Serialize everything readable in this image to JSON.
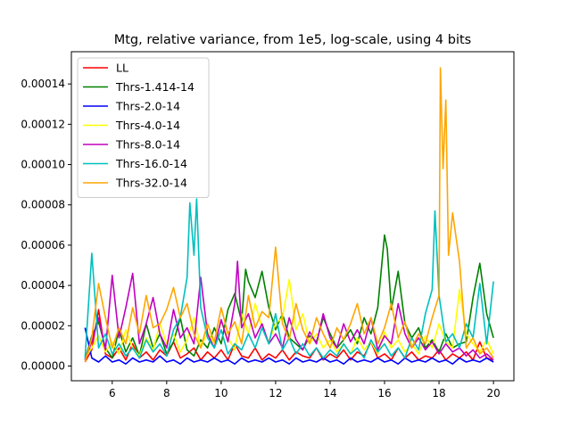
{
  "chart_data": {
    "type": "line",
    "title": "Mtg, relative variance, from 1e5, log-scale, using 4 bits",
    "xlabel": "",
    "ylabel": "",
    "xlim": [
      4.5,
      20.75
    ],
    "ylim": [
      -7.3e-06,
      0.000156
    ],
    "xticks": [
      6,
      8,
      10,
      12,
      14,
      16,
      18,
      20
    ],
    "xtick_labels": [
      "6",
      "8",
      "10",
      "12",
      "14",
      "16",
      "18",
      "20"
    ],
    "yticks": [
      0,
      2e-05,
      4e-05,
      6e-05,
      8e-05,
      0.0001,
      0.00012,
      0.00014
    ],
    "ytick_labels": [
      "0.00000",
      "0.00002",
      "0.00004",
      "0.00006",
      "0.00008",
      "0.00010",
      "0.00012",
      "0.00014"
    ],
    "grid": false,
    "legend_position": "upper left",
    "series": [
      {
        "name": "LL",
        "color": "#ff0000",
        "x": [
          5.0,
          5.25,
          5.5,
          5.75,
          6.0,
          6.25,
          6.5,
          6.75,
          7.0,
          7.25,
          7.5,
          7.75,
          8.0,
          8.25,
          8.5,
          8.75,
          9.0,
          9.25,
          9.5,
          9.75,
          10.0,
          10.25,
          10.5,
          10.75,
          11.0,
          11.25,
          11.5,
          11.75,
          12.0,
          12.25,
          12.5,
          12.75,
          13.0,
          13.25,
          13.5,
          13.75,
          14.0,
          14.25,
          14.5,
          14.75,
          15.0,
          15.25,
          15.5,
          15.75,
          16.0,
          16.25,
          16.5,
          16.75,
          17.0,
          17.25,
          17.5,
          17.75,
          18.0,
          18.25,
          18.5,
          18.75,
          19.0,
          19.25,
          19.5,
          19.75,
          20.0
        ],
        "y": [
          2e-06,
          8e-06,
          2.8e-05,
          6e-06,
          4e-06,
          9e-06,
          3e-06,
          1.1e-05,
          4e-06,
          7e-06,
          3e-06,
          8e-06,
          5e-06,
          1.2e-05,
          4e-06,
          6e-06,
          9e-06,
          3e-06,
          7e-06,
          4e-06,
          8e-06,
          3e-06,
          1.1e-05,
          5e-06,
          4e-06,
          9e-06,
          3e-06,
          6e-06,
          4e-06,
          8e-06,
          3e-06,
          7e-06,
          5e-06,
          4e-06,
          9e-06,
          3e-06,
          6e-06,
          4e-06,
          8e-06,
          3e-06,
          7e-06,
          5e-06,
          1.2e-05,
          4e-06,
          6e-06,
          3e-06,
          9e-06,
          4e-06,
          7e-06,
          3e-06,
          5e-06,
          4e-06,
          8e-06,
          3e-06,
          6e-06,
          4e-06,
          7e-06,
          3e-06,
          1.2e-05,
          4e-06,
          3e-06
        ]
      },
      {
        "name": "Thrs-1.414-14",
        "color": "#008000",
        "x": [
          5.0,
          5.25,
          5.5,
          5.75,
          6.0,
          6.25,
          6.5,
          6.75,
          7.0,
          7.25,
          7.5,
          7.75,
          8.0,
          8.25,
          8.5,
          8.75,
          9.0,
          9.25,
          9.5,
          9.75,
          10.0,
          10.25,
          10.5,
          10.75,
          10.9,
          11.0,
          11.25,
          11.5,
          11.75,
          12.0,
          12.25,
          12.5,
          12.75,
          13.0,
          13.25,
          13.5,
          13.75,
          14.0,
          14.25,
          14.5,
          14.75,
          15.0,
          15.25,
          15.5,
          15.75,
          16.0,
          16.1,
          16.25,
          16.5,
          16.75,
          17.0,
          17.25,
          17.5,
          17.75,
          18.0,
          18.25,
          18.5,
          18.75,
          19.0,
          19.25,
          19.5,
          19.75,
          20.0
        ],
        "y": [
          3e-06,
          1.5e-05,
          2.2e-05,
          9e-06,
          4e-06,
          1.8e-05,
          7e-06,
          1.4e-05,
          5e-06,
          2.1e-05,
          9e-06,
          1.6e-05,
          6e-06,
          1.2e-05,
          2.4e-05,
          8e-06,
          5e-06,
          1.3e-05,
          9e-06,
          1.9e-05,
          1.1e-05,
          2.8e-05,
          3.6e-05,
          2.2e-05,
          4.8e-05,
          4.2e-05,
          3.4e-05,
          4.7e-05,
          2.9e-05,
          1.8e-05,
          2.6e-05,
          1.4e-05,
          1.1e-05,
          8e-06,
          1.5e-05,
          1.2e-05,
          2.4e-05,
          1.6e-05,
          9e-06,
          1.3e-05,
          1.8e-05,
          1.1e-05,
          2.4e-05,
          1.6e-05,
          2.9e-05,
          6.5e-05,
          5.8e-05,
          2.8e-05,
          4.7e-05,
          2.1e-05,
          1.4e-05,
          1.9e-05,
          9e-06,
          1.3e-05,
          7e-06,
          1.6e-05,
          9e-06,
          1.1e-05,
          1.2e-05,
          3.4e-05,
          5.1e-05,
          2.6e-05,
          1.4e-05
        ]
      },
      {
        "name": "Thrs-2.0-14",
        "color": "#0000ff",
        "x": [
          5.0,
          5.25,
          5.5,
          5.75,
          6.0,
          6.25,
          6.5,
          6.75,
          7.0,
          7.25,
          7.5,
          7.75,
          8.0,
          8.25,
          8.5,
          8.75,
          9.0,
          9.25,
          9.5,
          9.75,
          10.0,
          10.25,
          10.5,
          10.75,
          11.0,
          11.25,
          11.5,
          11.75,
          12.0,
          12.25,
          12.5,
          12.75,
          13.0,
          13.25,
          13.5,
          13.75,
          14.0,
          14.25,
          14.5,
          14.75,
          15.0,
          15.25,
          15.5,
          15.75,
          16.0,
          16.25,
          16.5,
          16.75,
          17.0,
          17.25,
          17.5,
          17.75,
          18.0,
          18.25,
          18.5,
          18.75,
          19.0,
          19.25,
          19.5,
          19.75,
          20.0
        ],
        "y": [
          1.9e-05,
          4e-06,
          2e-06,
          5e-06,
          2e-06,
          3e-06,
          1e-06,
          4e-06,
          2e-06,
          3e-06,
          2e-06,
          5e-06,
          2e-06,
          3e-06,
          1e-06,
          4e-06,
          2e-06,
          3e-06,
          2e-06,
          4e-06,
          2e-06,
          3e-06,
          1e-06,
          4e-06,
          2e-06,
          3e-06,
          2e-06,
          4e-06,
          2e-06,
          3e-06,
          1e-06,
          4e-06,
          2e-06,
          3e-06,
          2e-06,
          4e-06,
          2e-06,
          3e-06,
          1e-06,
          4e-06,
          2e-06,
          3e-06,
          2e-06,
          4e-06,
          2e-06,
          3e-06,
          1e-06,
          4e-06,
          2e-06,
          3e-06,
          2e-06,
          4e-06,
          2e-06,
          3e-06,
          1e-06,
          4e-06,
          2e-06,
          3e-06,
          2e-06,
          4e-06,
          2e-06
        ]
      },
      {
        "name": "Thrs-4.0-14",
        "color": "#ffff00",
        "x": [
          5.0,
          5.25,
          5.5,
          5.75,
          6.0,
          6.25,
          6.5,
          6.75,
          7.0,
          7.25,
          7.5,
          7.75,
          8.0,
          8.25,
          8.5,
          8.75,
          9.0,
          9.25,
          9.5,
          9.75,
          10.0,
          10.25,
          10.5,
          10.75,
          11.0,
          11.25,
          11.5,
          11.75,
          12.0,
          12.25,
          12.5,
          12.75,
          13.0,
          13.25,
          13.5,
          13.75,
          14.0,
          14.25,
          14.5,
          14.75,
          15.0,
          15.25,
          15.5,
          15.75,
          16.0,
          16.25,
          16.5,
          16.75,
          17.0,
          17.25,
          17.5,
          17.75,
          18.0,
          18.25,
          18.5,
          18.75,
          19.0,
          19.25,
          19.5,
          19.75,
          20.0
        ],
        "y": [
          4e-06,
          9e-06,
          1.5e-05,
          7e-06,
          1.2e-05,
          6e-06,
          1.8e-05,
          9e-06,
          5e-06,
          1.4e-05,
          8e-06,
          2.1e-05,
          1.1e-05,
          1.6e-05,
          7e-06,
          1.3e-05,
          2.4e-05,
          9e-06,
          1.7e-05,
          1.1e-05,
          2.2e-05,
          1.4e-05,
          8e-06,
          2.6e-05,
          1.6e-05,
          3.1e-05,
          1.9e-05,
          1.2e-05,
          2.1e-05,
          2.4e-05,
          4.3e-05,
          1.8e-05,
          2.6e-05,
          1.1e-05,
          1.6e-05,
          9e-06,
          1.3e-05,
          7e-06,
          1.1e-05,
          6e-06,
          1.4e-05,
          8e-06,
          1.2e-05,
          6e-06,
          1.7e-05,
          9e-06,
          1.3e-05,
          7e-06,
          1.1e-05,
          6e-06,
          1.5e-05,
          9e-06,
          2.1e-05,
          1.2e-05,
          9e-06,
          3.8e-05,
          1.6e-05,
          1.1e-05,
          7e-06,
          1.3e-05,
          6e-06
        ]
      },
      {
        "name": "Thrs-8.0-14",
        "color": "#c000c0",
        "x": [
          5.0,
          5.25,
          5.5,
          5.75,
          6.0,
          6.25,
          6.5,
          6.75,
          7.0,
          7.25,
          7.5,
          7.75,
          8.0,
          8.25,
          8.5,
          8.75,
          9.0,
          9.25,
          9.5,
          9.75,
          10.0,
          10.25,
          10.5,
          10.6,
          10.75,
          11.0,
          11.25,
          11.5,
          11.75,
          12.0,
          12.25,
          12.5,
          12.75,
          13.0,
          13.25,
          13.5,
          13.75,
          14.0,
          14.25,
          14.5,
          14.75,
          15.0,
          15.25,
          15.5,
          15.75,
          16.0,
          16.25,
          16.5,
          16.75,
          17.0,
          17.25,
          17.5,
          17.75,
          18.0,
          18.25,
          18.5,
          18.75,
          19.0,
          19.25,
          19.5,
          19.75,
          20.0
        ],
        "y": [
          3e-06,
          1.2e-05,
          2.4e-05,
          8e-06,
          4.5e-05,
          1.4e-05,
          2.9e-05,
          4.6e-05,
          1.1e-05,
          2.1e-05,
          3.4e-05,
          1.6e-05,
          9e-06,
          2.8e-05,
          1.4e-05,
          1.9e-05,
          1.1e-05,
          4.4e-05,
          1.6e-05,
          9e-06,
          2.3e-05,
          1.2e-05,
          3.1e-05,
          5.2e-05,
          1.9e-05,
          2.6e-05,
          1.4e-05,
          2.1e-05,
          1.1e-05,
          1.6e-05,
          9e-06,
          2.4e-05,
          1.3e-05,
          8e-06,
          1.7e-05,
          1.1e-05,
          2.6e-05,
          1.4e-05,
          9e-06,
          2.1e-05,
          1.2e-05,
          1.8e-05,
          1.1e-05,
          2.4e-05,
          8e-06,
          1.5e-05,
          1.1e-05,
          3.1e-05,
          1.6e-05,
          9e-06,
          1.4e-05,
          8e-06,
          1.2e-05,
          6e-06,
          1.1e-05,
          7e-06,
          9e-06,
          5e-06,
          8e-06,
          4e-06,
          6e-06,
          3e-06
        ]
      },
      {
        "name": "Thrs-16.0-14",
        "color": "#00bfbf",
        "x": [
          5.0,
          5.25,
          5.5,
          5.75,
          6.0,
          6.25,
          6.5,
          6.75,
          7.0,
          7.25,
          7.5,
          7.75,
          8.0,
          8.25,
          8.5,
          8.75,
          8.85,
          9.0,
          9.1,
          9.25,
          9.5,
          9.75,
          10.0,
          10.25,
          10.5,
          10.75,
          11.0,
          11.25,
          11.5,
          11.75,
          12.0,
          12.25,
          12.5,
          12.75,
          13.0,
          13.25,
          13.5,
          13.75,
          14.0,
          14.25,
          14.5,
          14.75,
          15.0,
          15.25,
          15.5,
          15.75,
          16.0,
          16.25,
          16.5,
          16.75,
          17.0,
          17.25,
          17.5,
          17.75,
          17.85,
          18.0,
          18.25,
          18.5,
          18.75,
          19.0,
          19.25,
          19.5,
          19.75,
          20.0
        ],
        "y": [
          4e-06,
          5.6e-05,
          9e-06,
          1.6e-05,
          6e-06,
          1.1e-05,
          5e-06,
          9e-06,
          4e-06,
          1.3e-05,
          7e-06,
          1.1e-05,
          5e-06,
          1.8e-05,
          2.4e-05,
          4.4e-05,
          8.1e-05,
          5.5e-05,
          8.3e-05,
          2.9e-05,
          1.4e-05,
          9e-06,
          1.8e-05,
          6e-06,
          1.1e-05,
          8e-06,
          1.6e-05,
          9e-06,
          1.9e-05,
          1.1e-05,
          2.6e-05,
          8e-06,
          1.4e-05,
          6e-06,
          1.1e-05,
          5e-06,
          9e-06,
          4e-06,
          8e-06,
          5e-06,
          1.1e-05,
          6e-06,
          9e-06,
          4e-06,
          1.3e-05,
          7e-06,
          1.1e-05,
          5e-06,
          9e-06,
          4e-06,
          1.4e-05,
          8e-06,
          2.6e-05,
          3.8e-05,
          7.7e-05,
          3.5e-05,
          1.2e-05,
          1.6e-05,
          9e-06,
          2.1e-05,
          1.4e-05,
          4.1e-05,
          1.1e-05,
          4.2e-05
        ]
      },
      {
        "name": "Thrs-32.0-14",
        "color": "#ffa500",
        "x": [
          5.0,
          5.25,
          5.5,
          5.75,
          6.0,
          6.25,
          6.5,
          6.75,
          7.0,
          7.25,
          7.5,
          7.75,
          8.0,
          8.25,
          8.5,
          8.75,
          9.0,
          9.25,
          9.5,
          9.75,
          10.0,
          10.25,
          10.5,
          10.75,
          11.0,
          11.25,
          11.5,
          11.75,
          12.0,
          12.25,
          12.5,
          12.75,
          13.0,
          13.25,
          13.5,
          13.75,
          14.0,
          14.25,
          14.5,
          14.75,
          15.0,
          15.25,
          15.5,
          15.75,
          16.0,
          16.25,
          16.5,
          16.75,
          17.0,
          17.25,
          17.5,
          17.75,
          18.0,
          18.05,
          18.15,
          18.25,
          18.35,
          18.5,
          18.75,
          19.0,
          19.25,
          19.5,
          19.75,
          20.0
        ],
        "y": [
          2e-06,
          1.4e-05,
          4.1e-05,
          2.4e-05,
          9e-06,
          1.9e-05,
          1.1e-05,
          2.9e-05,
          1.6e-05,
          3.5e-05,
          1.9e-05,
          2.1e-05,
          2.8e-05,
          3.9e-05,
          2.4e-05,
          3.1e-05,
          1.6e-05,
          9e-06,
          2.1e-05,
          1.2e-05,
          2.9e-05,
          1.6e-05,
          2.2e-05,
          1.1e-05,
          3.5e-05,
          1.9e-05,
          2.7e-05,
          2.4e-05,
          5.9e-05,
          2.1e-05,
          1.3e-05,
          3.1e-05,
          1.8e-05,
          1.1e-05,
          2.4e-05,
          1.6e-05,
          9e-06,
          1.9e-05,
          1.3e-05,
          2.1e-05,
          3.1e-05,
          1.6e-05,
          2.4e-05,
          1.1e-05,
          1.9e-05,
          3.1e-05,
          1.4e-05,
          2.2e-05,
          9e-06,
          1.6e-05,
          1.1e-05,
          2.4e-05,
          3.5e-05,
          0.000148,
          9.8e-05,
          0.000132,
          5.5e-05,
          7.6e-05,
          5.2e-05,
          9e-06,
          1.4e-05,
          6e-06,
          9e-06,
          4e-06
        ]
      }
    ]
  }
}
